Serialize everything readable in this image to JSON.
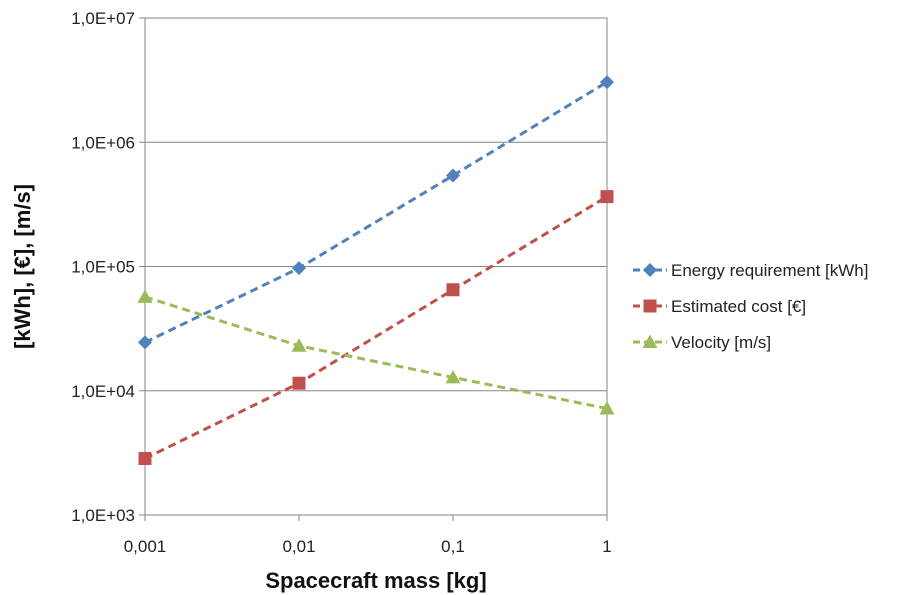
{
  "chart_data": {
    "type": "line",
    "xlabel": "Spacecraft mass [kg]",
    "ylabel": "[kWh], [€], [m/s]",
    "x_scale": "log",
    "y_scale": "log",
    "x": [
      0.001,
      0.01,
      0.1,
      1
    ],
    "x_tick_labels": [
      "0,001",
      "0,01",
      "0,1",
      "1"
    ],
    "y_ticks": [
      1000,
      10000,
      100000,
      1000000,
      10000000
    ],
    "y_tick_labels": [
      "1,0E+03",
      "1,0E+04",
      "1,0E+05",
      "1,0E+06",
      "1,0E+07"
    ],
    "xlim": [
      0.001,
      1
    ],
    "ylim": [
      1000,
      10000000
    ],
    "grid": "horizontal major gridlines",
    "legend_position": "right",
    "series": [
      {
        "name": "Energy requirement [kWh]",
        "values": [
          24500,
          97000,
          540000,
          3050000
        ],
        "color": "#4F81BD",
        "marker": "diamond"
      },
      {
        "name": "Estimated cost [€]",
        "values": [
          2850,
          11500,
          65000,
          365000
        ],
        "color": "#C0504D",
        "marker": "square"
      },
      {
        "name": "Velocity [m/s]",
        "values": [
          57000,
          23000,
          12800,
          7200
        ],
        "color": "#9BBB59",
        "marker": "triangle"
      }
    ]
  }
}
